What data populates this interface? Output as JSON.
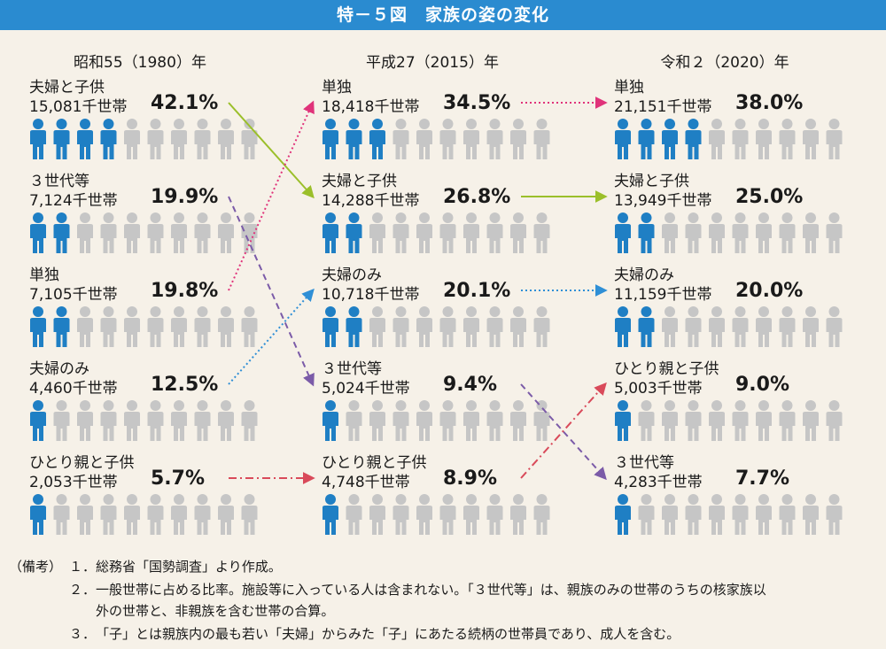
{
  "title": "特－５図　家族の姿の変化",
  "colors": {
    "header_bg": "#2a8bd0",
    "person_active": "#1f7fc4",
    "person_inactive": "#c6c6c6",
    "arrow_green": "#9bbf2a",
    "arrow_magenta": "#e0337a",
    "arrow_blue": "#2f8fd6",
    "arrow_purple": "#7b5ba8",
    "arrow_red": "#d94a5a"
  },
  "chart_data": {
    "type": "pictogram",
    "unit": "千世帯",
    "people_per_row": 10,
    "columns": [
      {
        "year_label": "昭和55（1980）年",
        "rows": [
          {
            "category": "夫婦と子供",
            "households": "15,081",
            "percent": "42.1%",
            "value": 42.1,
            "filled": 4
          },
          {
            "category": "３世代等",
            "households": "7,124",
            "percent": "19.9%",
            "value": 19.9,
            "filled": 2
          },
          {
            "category": "単独",
            "households": "7,105",
            "percent": "19.8%",
            "value": 19.8,
            "filled": 2
          },
          {
            "category": "夫婦のみ",
            "households": "4,460",
            "percent": "12.5%",
            "value": 12.5,
            "filled": 1
          },
          {
            "category": "ひとり親と子供",
            "households": "2,053",
            "percent": "5.7%",
            "value": 5.7,
            "filled": 1
          }
        ]
      },
      {
        "year_label": "平成27（2015）年",
        "rows": [
          {
            "category": "単独",
            "households": "18,418",
            "percent": "34.5%",
            "value": 34.5,
            "filled": 3
          },
          {
            "category": "夫婦と子供",
            "households": "14,288",
            "percent": "26.8%",
            "value": 26.8,
            "filled": 2
          },
          {
            "category": "夫婦のみ",
            "households": "10,718",
            "percent": "20.1%",
            "value": 20.1,
            "filled": 2
          },
          {
            "category": "３世代等",
            "households": "5,024",
            "percent": "9.4%",
            "value": 9.4,
            "filled": 1
          },
          {
            "category": "ひとり親と子供",
            "households": "4,748",
            "percent": "8.9%",
            "value": 8.9,
            "filled": 1
          }
        ]
      },
      {
        "year_label": "令和２（2020）年",
        "rows": [
          {
            "category": "単独",
            "households": "21,151",
            "percent": "38.0%",
            "value": 38.0,
            "filled": 4
          },
          {
            "category": "夫婦と子供",
            "households": "13,949",
            "percent": "25.0%",
            "value": 25.0,
            "filled": 2
          },
          {
            "category": "夫婦のみ",
            "households": "11,159",
            "percent": "20.0%",
            "value": 20.0,
            "filled": 2
          },
          {
            "category": "ひとり親と子供",
            "households": "5,003",
            "percent": "9.0%",
            "value": 9.0,
            "filled": 1
          },
          {
            "category": "３世代等",
            "households": "4,283",
            "percent": "7.7%",
            "value": 7.7,
            "filled": 1
          }
        ]
      }
    ],
    "arrows": [
      {
        "from_col": 0,
        "from_row": 0,
        "to_col": 1,
        "to_row": 1,
        "color": "arrow_green",
        "style": "solid"
      },
      {
        "from_col": 0,
        "from_row": 1,
        "to_col": 1,
        "to_row": 3,
        "color": "arrow_purple",
        "style": "dashed"
      },
      {
        "from_col": 0,
        "from_row": 2,
        "to_col": 1,
        "to_row": 0,
        "color": "arrow_magenta",
        "style": "dotted"
      },
      {
        "from_col": 0,
        "from_row": 3,
        "to_col": 1,
        "to_row": 2,
        "color": "arrow_blue",
        "style": "dotted"
      },
      {
        "from_col": 0,
        "from_row": 4,
        "to_col": 1,
        "to_row": 4,
        "color": "arrow_red",
        "style": "dashdot"
      },
      {
        "from_col": 1,
        "from_row": 0,
        "to_col": 2,
        "to_row": 0,
        "color": "arrow_magenta",
        "style": "dotted"
      },
      {
        "from_col": 1,
        "from_row": 1,
        "to_col": 2,
        "to_row": 1,
        "color": "arrow_green",
        "style": "solid"
      },
      {
        "from_col": 1,
        "from_row": 2,
        "to_col": 2,
        "to_row": 2,
        "color": "arrow_blue",
        "style": "dotted"
      },
      {
        "from_col": 1,
        "from_row": 3,
        "to_col": 2,
        "to_row": 4,
        "color": "arrow_purple",
        "style": "dashed"
      },
      {
        "from_col": 1,
        "from_row": 4,
        "to_col": 2,
        "to_row": 3,
        "color": "arrow_red",
        "style": "dashdot"
      }
    ]
  },
  "notes": {
    "prefix": "（備考）",
    "items": [
      {
        "num": "１．",
        "text": "総務省「国勢調査」より作成。"
      },
      {
        "num": "２．",
        "text": "一般世帯に占める比率。施設等に入っている人は含まれない。「３世代等」は、親族のみの世帯のうちの核家族以"
      },
      {
        "num": "",
        "text": "外の世帯と、非親族を含む世帯の合算。"
      },
      {
        "num": "３．",
        "text": "「子」とは親族内の最も若い「夫婦」からみた「子」にあたる続柄の世帯員であり、成人を含む。"
      }
    ]
  }
}
